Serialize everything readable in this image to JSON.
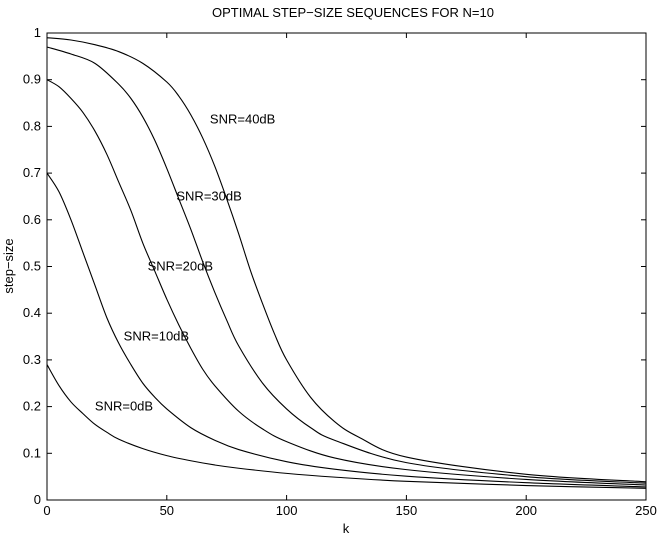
{
  "chart_data": {
    "type": "line",
    "title": "OPTIMAL STEP−SIZE SEQUENCES FOR N=10",
    "xlabel": "k",
    "ylabel": "step−size",
    "xlim": [
      0,
      250
    ],
    "ylim": [
      0,
      1
    ],
    "xticks": [
      0,
      50,
      100,
      150,
      200,
      250
    ],
    "xtick_labels": [
      "0",
      "50",
      "100",
      "150",
      "200",
      "250"
    ],
    "yticks": [
      0,
      0.1,
      0.2,
      0.3,
      0.4,
      0.5,
      0.6,
      0.7,
      0.8,
      0.9,
      1
    ],
    "ytick_labels": [
      "0",
      "0.1",
      "0.2",
      "0.3",
      "0.4",
      "0.5",
      "0.6",
      "0.7",
      "0.8",
      "0.9",
      "1"
    ],
    "grid": false,
    "legend": "none",
    "line_color": "#000000",
    "series": [
      {
        "x": [
          0,
          5,
          10,
          15,
          20,
          25,
          30,
          40,
          50,
          60,
          70,
          80,
          100,
          120,
          150,
          200,
          250
        ],
        "y": [
          0.29,
          0.245,
          0.21,
          0.185,
          0.162,
          0.145,
          0.13,
          0.11,
          0.095,
          0.084,
          0.075,
          0.068,
          0.057,
          0.049,
          0.04,
          0.031,
          0.025
        ]
      },
      {
        "x": [
          0,
          5,
          10,
          15,
          20,
          25,
          30,
          35,
          40,
          45,
          50,
          60,
          70,
          80,
          100,
          120,
          150,
          200,
          250
        ],
        "y": [
          0.7,
          0.66,
          0.6,
          0.53,
          0.46,
          0.39,
          0.335,
          0.29,
          0.25,
          0.22,
          0.195,
          0.155,
          0.128,
          0.108,
          0.082,
          0.066,
          0.051,
          0.037,
          0.028
        ]
      },
      {
        "x": [
          0,
          5,
          10,
          15,
          20,
          25,
          30,
          35,
          40,
          45,
          50,
          55,
          60,
          65,
          70,
          80,
          90,
          100,
          120,
          150,
          200,
          250
        ],
        "y": [
          0.9,
          0.885,
          0.86,
          0.83,
          0.79,
          0.74,
          0.68,
          0.62,
          0.55,
          0.49,
          0.43,
          0.375,
          0.325,
          0.28,
          0.245,
          0.19,
          0.152,
          0.125,
          0.09,
          0.065,
          0.044,
          0.032
        ]
      },
      {
        "x": [
          0,
          10,
          20,
          30,
          35,
          40,
          45,
          50,
          55,
          60,
          65,
          70,
          75,
          80,
          90,
          100,
          110,
          120,
          150,
          200,
          250
        ],
        "y": [
          0.97,
          0.955,
          0.935,
          0.89,
          0.86,
          0.82,
          0.77,
          0.71,
          0.645,
          0.58,
          0.51,
          0.445,
          0.385,
          0.33,
          0.25,
          0.195,
          0.155,
          0.128,
          0.08,
          0.05,
          0.036
        ]
      },
      {
        "x": [
          0,
          10,
          20,
          30,
          40,
          50,
          55,
          60,
          65,
          70,
          75,
          80,
          85,
          90,
          95,
          100,
          110,
          120,
          130,
          150,
          200,
          250
        ],
        "y": [
          0.99,
          0.985,
          0.975,
          0.96,
          0.935,
          0.895,
          0.865,
          0.825,
          0.775,
          0.715,
          0.645,
          0.57,
          0.49,
          0.42,
          0.355,
          0.3,
          0.22,
          0.168,
          0.135,
          0.092,
          0.055,
          0.039
        ]
      }
    ],
    "annotations": [
      {
        "text": "SNR=0dB",
        "x": 20,
        "y": 0.2
      },
      {
        "text": "SNR=10dB",
        "x": 32,
        "y": 0.35
      },
      {
        "text": "SNR=20dB",
        "x": 42,
        "y": 0.5
      },
      {
        "text": "SNR=30dB",
        "x": 54,
        "y": 0.65
      },
      {
        "text": "SNR=40dB",
        "x": 68,
        "y": 0.815
      }
    ]
  }
}
